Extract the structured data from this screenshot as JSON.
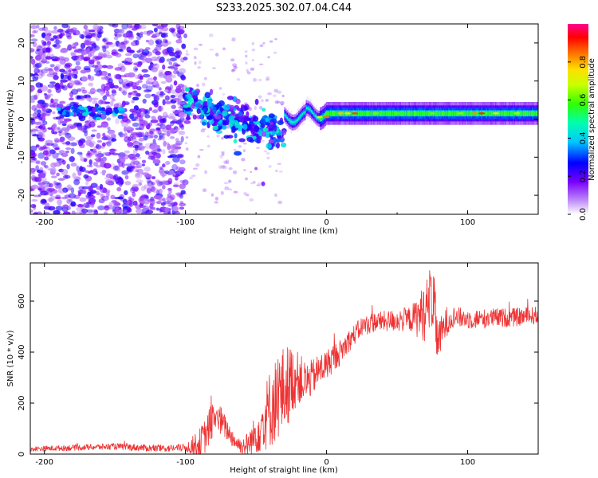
{
  "title": "S233.2025.302.07.04.C44",
  "chart_data": [
    {
      "type": "heatmap",
      "xlabel": "Height of straight line (km)",
      "ylabel": "Frequency (Hz)",
      "xlim": [
        -210,
        150
      ],
      "ylim": [
        -25,
        25
      ],
      "xticks": [
        -200,
        -100,
        0,
        100
      ],
      "xtick_labels": [
        "-200",
        "-100",
        "0",
        "100"
      ],
      "yticks": [
        -20,
        -10,
        0,
        10,
        20
      ],
      "ytick_labels": [
        "-20",
        "-10",
        "0",
        "10",
        "20"
      ],
      "colorbar": {
        "label": "Normalized spectral amplitude",
        "range": [
          0.0,
          1.0
        ],
        "ticks": [
          0.0,
          0.2,
          0.4,
          0.6,
          0.8
        ],
        "tick_labels": [
          "0.0",
          "0.2",
          "0.4",
          "0.6",
          "0.8"
        ],
        "colormap": "rainbow"
      },
      "features": [
        {
          "name": "scattered noise",
          "x_range": [
            -210,
            -100
          ],
          "y_range": [
            -25,
            25
          ],
          "amplitude": 0.2
        },
        {
          "name": "low-frequency band",
          "x_range": [
            -190,
            -145
          ],
          "y_center": 2,
          "amplitude": 0.3
        },
        {
          "name": "ramp region",
          "x_range": [
            -100,
            -30
          ],
          "y_start": 4,
          "y_end": -4,
          "amplitude": 0.35
        },
        {
          "name": "steady tone",
          "x_range": [
            -30,
            150
          ],
          "y_center": 1.5,
          "amplitude": 0.6,
          "peak_x": [
            0,
            110
          ]
        }
      ]
    },
    {
      "type": "line",
      "xlabel": "Height of straight line (km)",
      "ylabel": "SNR (10 * v/v)",
      "xlim": [
        -210,
        150
      ],
      "ylim": [
        0,
        750
      ],
      "xticks": [
        -200,
        -100,
        0,
        100
      ],
      "xtick_labels": [
        "-200",
        "-100",
        "0",
        "100"
      ],
      "yticks": [
        0,
        200,
        400,
        600
      ],
      "ytick_labels": [
        "0",
        "200",
        "400",
        "600"
      ],
      "color": "#ee3333",
      "series": [
        {
          "name": "SNR",
          "x": [
            -210,
            -180,
            -150,
            -120,
            -100,
            -90,
            -85,
            -80,
            -75,
            -70,
            -65,
            -60,
            -55,
            -50,
            -45,
            -40,
            -35,
            -30,
            -25,
            -20,
            -15,
            -10,
            -5,
            0,
            5,
            10,
            15,
            20,
            25,
            30,
            35,
            40,
            50,
            60,
            65,
            70,
            72,
            75,
            78,
            80,
            85,
            90,
            100,
            110,
            120,
            130,
            140,
            150
          ],
          "y": [
            20,
            25,
            30,
            22,
            25,
            40,
            80,
            150,
            130,
            90,
            50,
            30,
            40,
            80,
            130,
            180,
            220,
            250,
            290,
            300,
            280,
            300,
            330,
            350,
            380,
            400,
            440,
            470,
            500,
            510,
            520,
            520,
            525,
            530,
            540,
            560,
            580,
            640,
            470,
            450,
            520,
            540,
            530,
            530,
            535,
            535,
            540,
            545
          ]
        }
      ],
      "noise_amplitude": [
        [
          -210,
          10
        ],
        [
          -100,
          15
        ],
        [
          -90,
          60
        ],
        [
          -80,
          80
        ],
        [
          -70,
          40
        ],
        [
          -60,
          30
        ],
        [
          -50,
          80
        ],
        [
          -40,
          160
        ],
        [
          -30,
          180
        ],
        [
          -20,
          100
        ],
        [
          -10,
          70
        ],
        [
          0,
          60
        ],
        [
          20,
          40
        ],
        [
          40,
          40
        ],
        [
          60,
          50
        ],
        [
          70,
          120
        ],
        [
          75,
          150
        ],
        [
          80,
          80
        ],
        [
          90,
          40
        ],
        [
          150,
          35
        ]
      ]
    }
  ]
}
